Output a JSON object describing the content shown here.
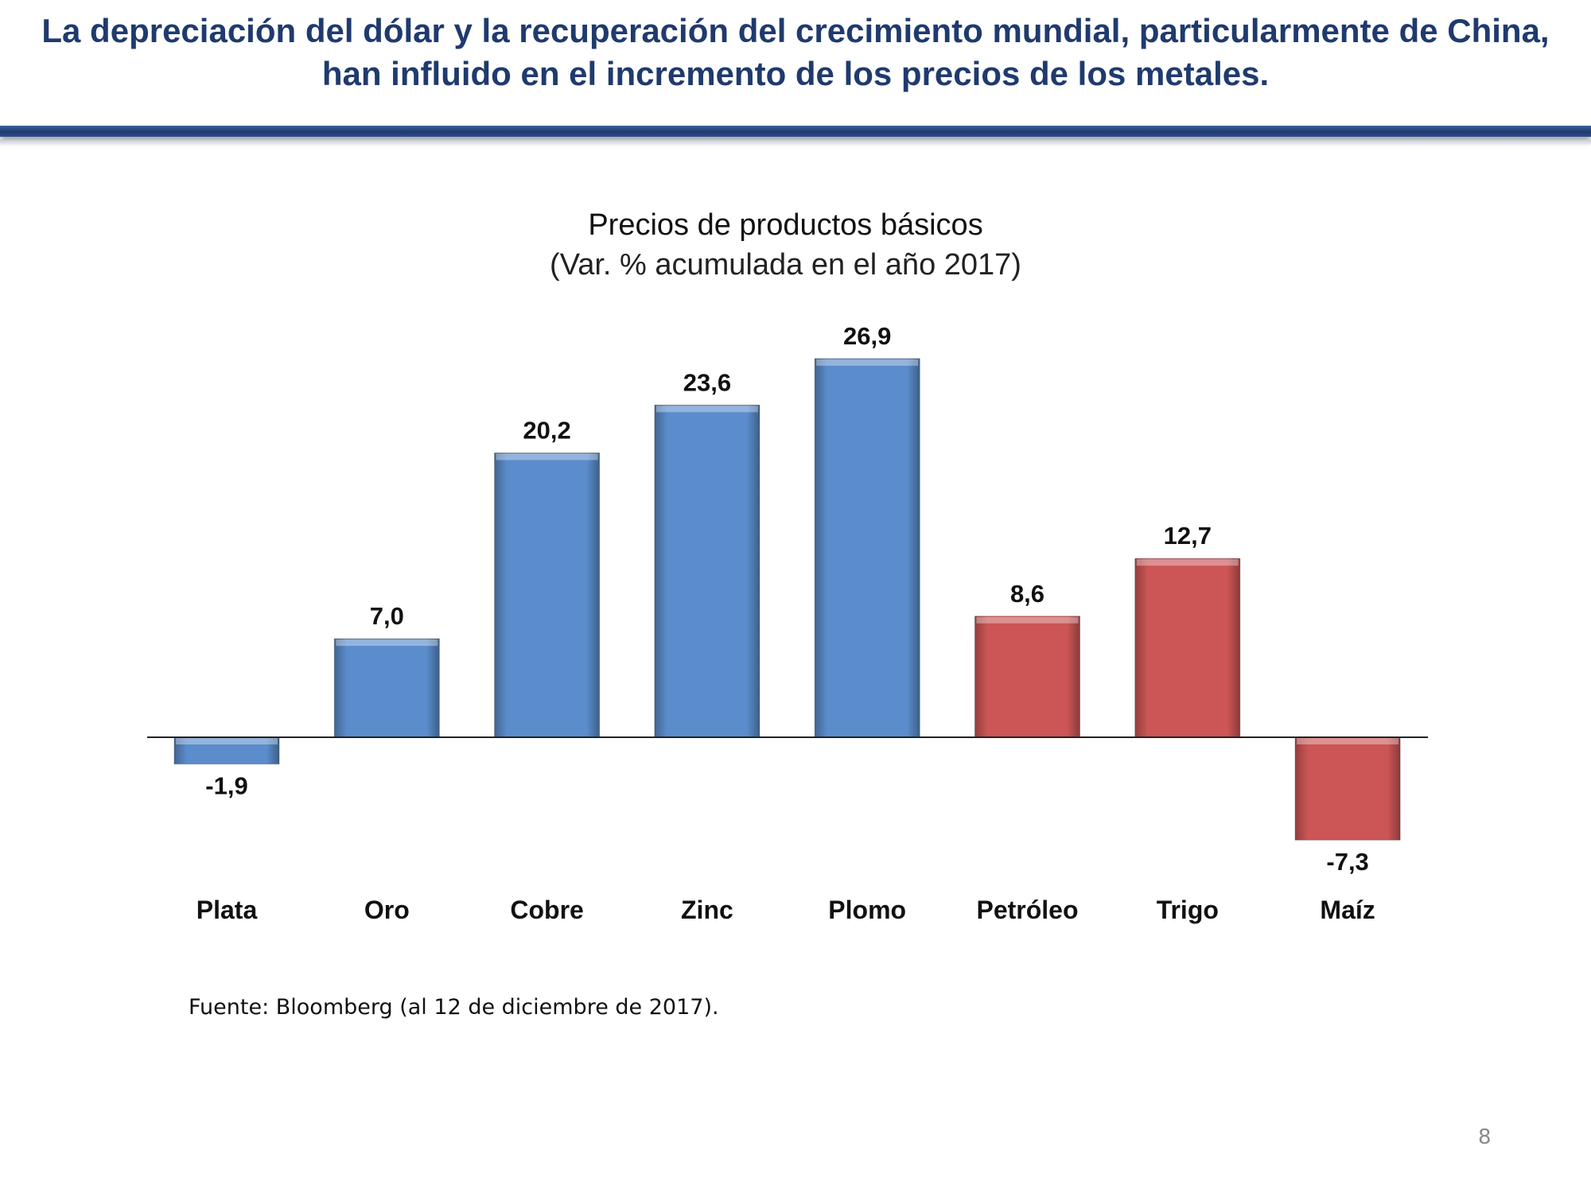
{
  "slide": {
    "headline": "La depreciación del dólar y la recuperación del crecimiento mundial, particularmente de China, han influido en el incremento de los precios de los metales.",
    "source": "Fuente: Bloomberg (al 12 de diciembre de 2017).",
    "page_number": "8"
  },
  "colors": {
    "headline": "#1f3a6e",
    "metals_bar": "#5b8ccb",
    "agro_energy_bar": "#cc5555"
  },
  "chart_data": {
    "type": "bar",
    "title": "Precios de productos básicos",
    "subtitle": "(Var. % acumulada en el año 2017)",
    "categories": [
      "Plata",
      "Oro",
      "Cobre",
      "Zinc",
      "Plomo",
      "Petróleo",
      "Trigo",
      "Maíz"
    ],
    "values": [
      -1.9,
      7.0,
      20.2,
      23.6,
      26.9,
      8.6,
      12.7,
      -7.3
    ],
    "value_labels": [
      "-1,9",
      "7,0",
      "20,2",
      "23,6",
      "26,9",
      "8,6",
      "12,7",
      "-7,3"
    ],
    "bar_colors": [
      "#5b8ccb",
      "#5b8ccb",
      "#5b8ccb",
      "#5b8ccb",
      "#5b8ccb",
      "#cc5555",
      "#cc5555",
      "#cc5555"
    ],
    "xlabel": "",
    "ylabel": "",
    "ylim": [
      -10,
      30
    ],
    "grid": false,
    "legend": false
  }
}
